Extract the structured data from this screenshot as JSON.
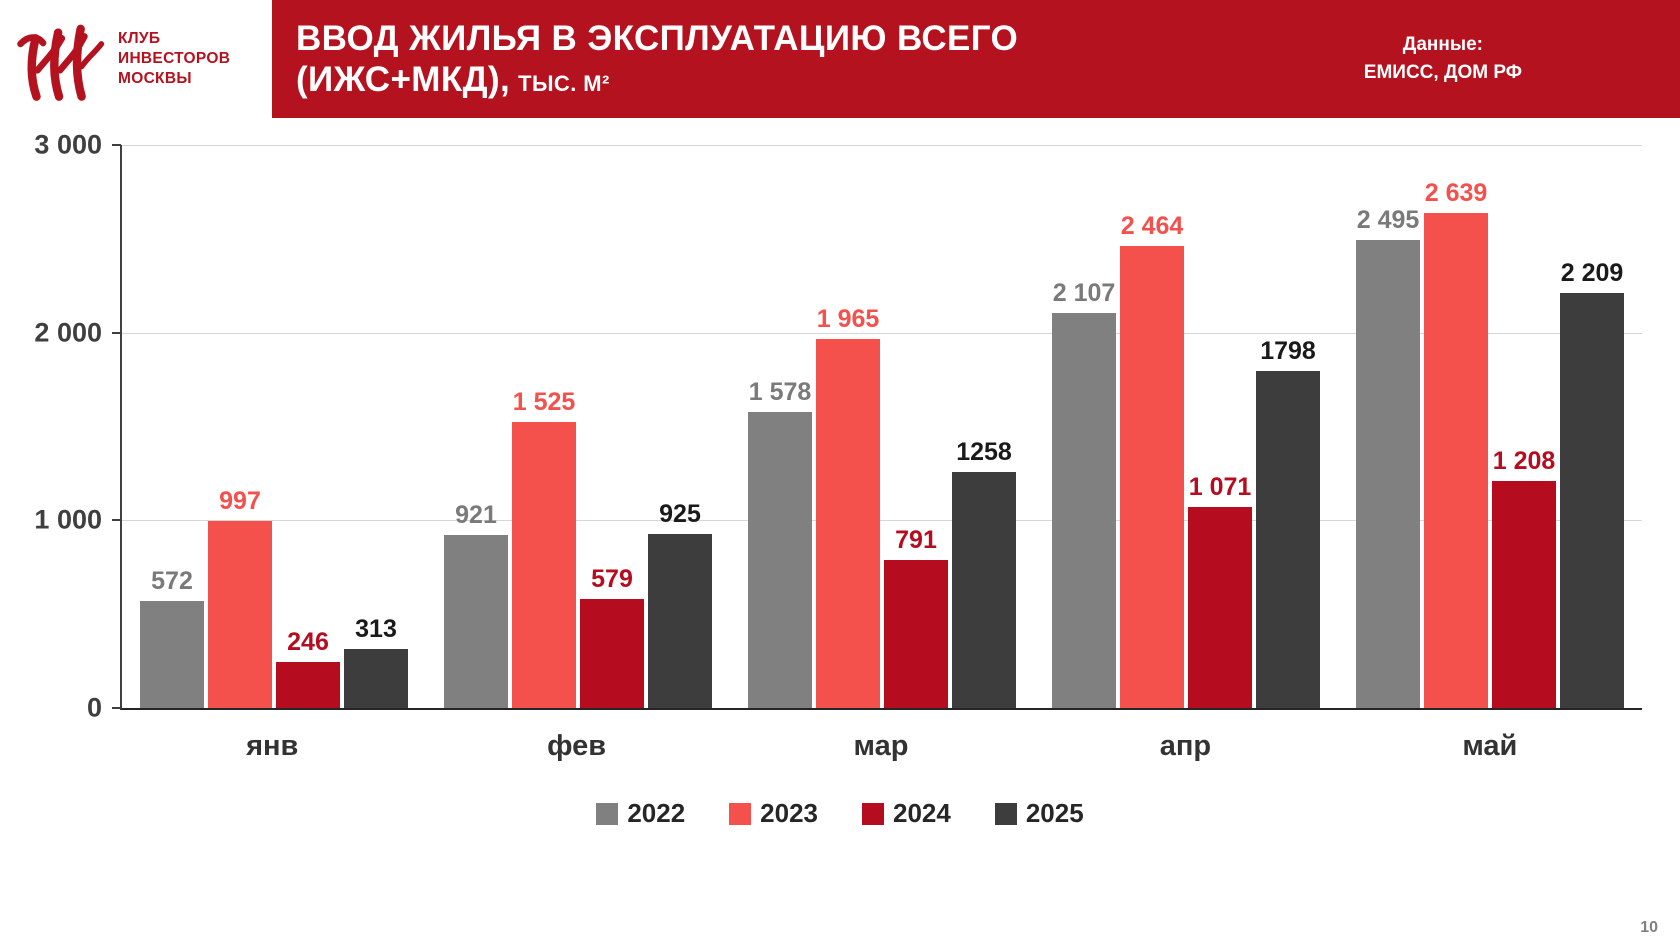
{
  "header": {
    "background": "#b5121f",
    "org_line1": "КЛУБ",
    "org_line2": "ИНВЕСТОРОВ",
    "org_line3": "МОСКВЫ",
    "title_line1": "ВВОД ЖИЛЬЯ В ЭКСПЛУАТАЦИЮ ВСЕГО",
    "title_line2_main": "(ИЖС+МКД),",
    "title_units": "ТЫС. М²",
    "source_line1": "Данные:",
    "source_line2": "ЕМИСС, ДОМ РФ"
  },
  "chart_data": {
    "type": "bar",
    "categories": [
      "янв",
      "фев",
      "мар",
      "апр",
      "май"
    ],
    "series": [
      {
        "name": "2022",
        "color": "#808080",
        "label_color": "#7a7a7a",
        "values": [
          572,
          921,
          1578,
          2107,
          2495
        ],
        "labels": [
          "572",
          "921",
          "1 578",
          "2 107",
          "2 495"
        ]
      },
      {
        "name": "2023",
        "color": "#f4504c",
        "label_color": "#f4504c",
        "values": [
          997,
          1525,
          1965,
          2464,
          2639
        ],
        "labels": [
          "997",
          "1 525",
          "1 965",
          "2 464",
          "2 639"
        ]
      },
      {
        "name": "2024",
        "color": "#b50d1f",
        "label_color": "#b50d1f",
        "values": [
          246,
          579,
          791,
          1071,
          1208
        ],
        "labels": [
          "246",
          "579",
          "791",
          "1 071",
          "1 208"
        ]
      },
      {
        "name": "2025",
        "color": "#3d3d3d",
        "label_color": "#1a1a1a",
        "values": [
          313,
          925,
          1258,
          1798,
          2209
        ],
        "labels": [
          "313",
          "925",
          "1258",
          "1798",
          "2 209"
        ]
      }
    ],
    "ylim": [
      0,
      3000
    ],
    "yticks": [
      0,
      1000,
      2000,
      3000
    ],
    "ytick_labels": [
      "0",
      "1 000",
      "2 000",
      "3 000"
    ],
    "grid": true,
    "legend_position": "bottom",
    "title": "ВВОД ЖИЛЬЯ В ЭКСПЛУАТАЦИЮ ВСЕГО (ИЖС+МКД), ТЫС. М²",
    "xlabel": "",
    "ylabel": ""
  },
  "footer": {
    "page_number": "10"
  }
}
